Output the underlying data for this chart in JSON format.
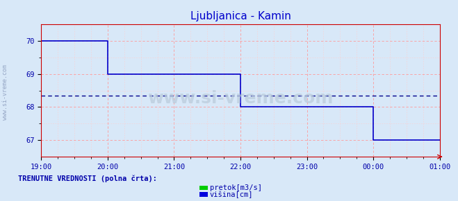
{
  "title": "Ljubljanica - Kamin",
  "title_color": "#0000cc",
  "bg_color": "#d8e8f8",
  "plot_bg_color": "#d8e8f8",
  "grid_color_major": "#ff9999",
  "grid_color_minor": "#ffcccc",
  "x_tick_labels": [
    "19:00",
    "20:00",
    "21:00",
    "22:00",
    "23:00",
    "00:00",
    "01:00"
  ],
  "x_tick_positions": [
    0,
    12,
    24,
    36,
    48,
    60,
    72
  ],
  "ylim": [
    66.5,
    70.5
  ],
  "yticks": [
    67,
    68,
    69,
    70
  ],
  "ylabel_color": "#0000aa",
  "axis_color": "#cc0000",
  "watermark": "www.si-vreme.com",
  "side_text": "www.si-vreme.com",
  "dashed_line_y": 68.35,
  "dashed_line_color": "#00008b",
  "line_color": "#0000cc",
  "total_points": 73,
  "visina_data": [
    70,
    70,
    70,
    70,
    70,
    70,
    70,
    70,
    70,
    70,
    70,
    70,
    69,
    69,
    69,
    69,
    69,
    69,
    69,
    69,
    69,
    69,
    69,
    69,
    69,
    69,
    69,
    69,
    69,
    69,
    69,
    69,
    69,
    69,
    69,
    69,
    68,
    68,
    68,
    68,
    68,
    68,
    68,
    68,
    68,
    68,
    68,
    68,
    68,
    68,
    68,
    68,
    68,
    68,
    68,
    68,
    68,
    68,
    68,
    68,
    67,
    67,
    67,
    67,
    67,
    67,
    67,
    67,
    67,
    67,
    67,
    67,
    67
  ],
  "bottom_label": "TRENUTNE VREDNOSTI (polna črta):",
  "legend_pretok_color": "#00cc00",
  "legend_visina_color": "#0000dd",
  "legend_pretok_label": "pretok[m3/s]",
  "legend_visina_label": "višina[cm]"
}
